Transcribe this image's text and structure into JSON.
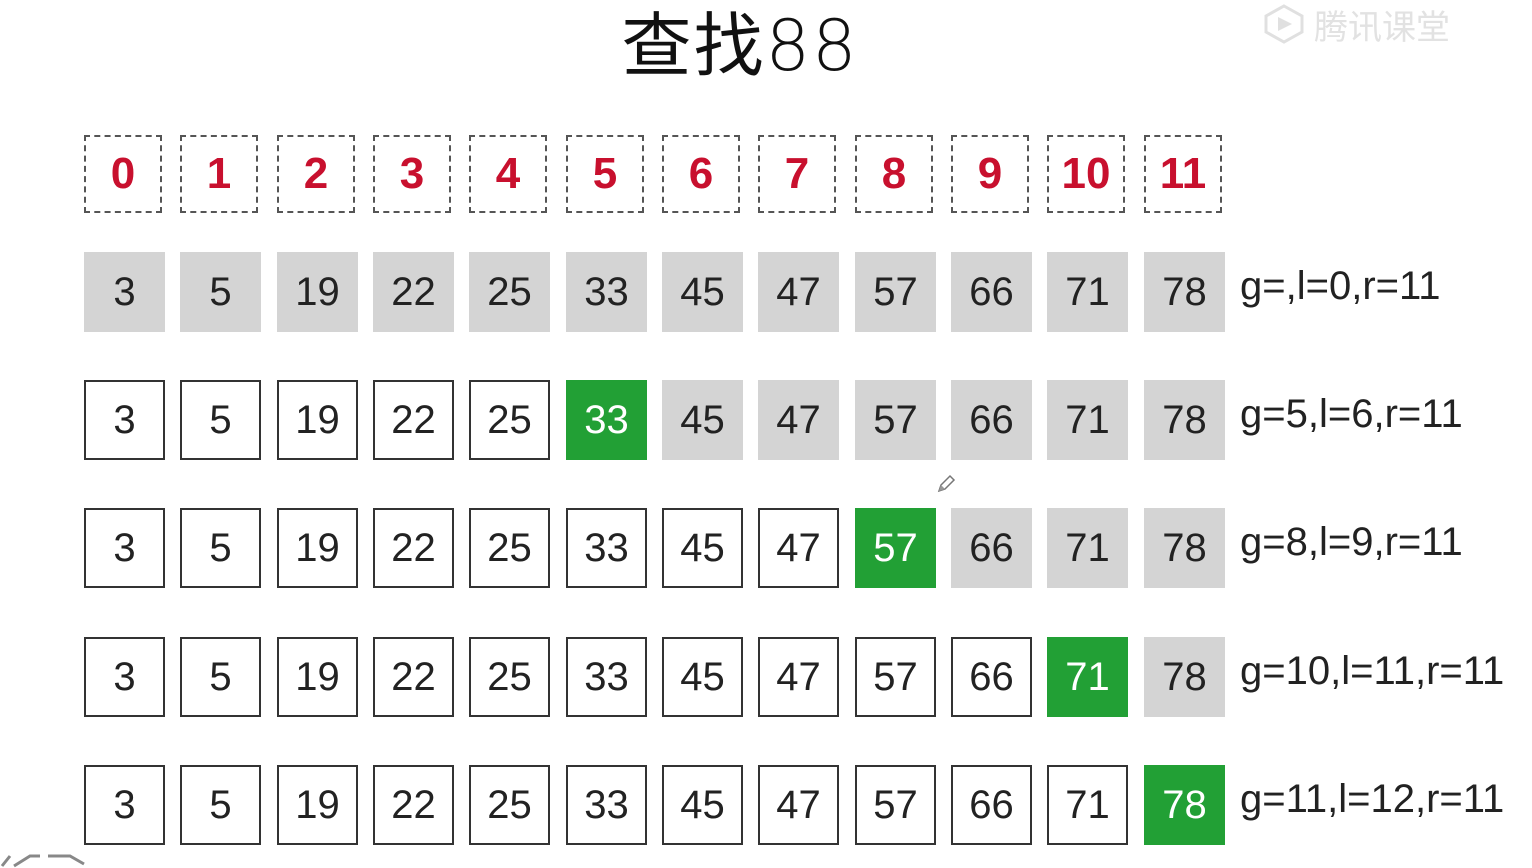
{
  "title": "查找88",
  "watermark": "腾讯课堂",
  "indices": [
    "0",
    "1",
    "2",
    "3",
    "4",
    "5",
    "6",
    "7",
    "8",
    "9",
    "10",
    "11"
  ],
  "steps": [
    {
      "values": [
        "3",
        "5",
        "19",
        "22",
        "25",
        "33",
        "45",
        "47",
        "57",
        "66",
        "71",
        "78"
      ],
      "states": [
        "active",
        "active",
        "active",
        "active",
        "active",
        "active",
        "active",
        "active",
        "active",
        "active",
        "active",
        "active"
      ],
      "status": "g=,l=0,r=11"
    },
    {
      "values": [
        "3",
        "5",
        "19",
        "22",
        "25",
        "33",
        "45",
        "47",
        "57",
        "66",
        "71",
        "78"
      ],
      "states": [
        "discarded",
        "discarded",
        "discarded",
        "discarded",
        "discarded",
        "mid",
        "active",
        "active",
        "active",
        "active",
        "active",
        "active"
      ],
      "status": "g=5,l=6,r=11"
    },
    {
      "values": [
        "3",
        "5",
        "19",
        "22",
        "25",
        "33",
        "45",
        "47",
        "57",
        "66",
        "71",
        "78"
      ],
      "states": [
        "discarded",
        "discarded",
        "discarded",
        "discarded",
        "discarded",
        "discarded",
        "discarded",
        "discarded",
        "mid",
        "active",
        "active",
        "active"
      ],
      "status": "g=8,l=9,r=11"
    },
    {
      "values": [
        "3",
        "5",
        "19",
        "22",
        "25",
        "33",
        "45",
        "47",
        "57",
        "66",
        "71",
        "78"
      ],
      "states": [
        "discarded",
        "discarded",
        "discarded",
        "discarded",
        "discarded",
        "discarded",
        "discarded",
        "discarded",
        "discarded",
        "discarded",
        "mid",
        "active"
      ],
      "status": "g=10,l=11,r=11"
    },
    {
      "values": [
        "3",
        "5",
        "19",
        "22",
        "25",
        "33",
        "45",
        "47",
        "57",
        "66",
        "71",
        "78"
      ],
      "states": [
        "discarded",
        "discarded",
        "discarded",
        "discarded",
        "discarded",
        "discarded",
        "discarded",
        "discarded",
        "discarded",
        "discarded",
        "discarded",
        "mid"
      ],
      "status": "g=11,l=12,r=11"
    }
  ],
  "colors": {
    "index_text": "#c8102e",
    "active_cell": "#d4d4d4",
    "mid_cell": "#22a035",
    "discarded_border": "#333333"
  }
}
